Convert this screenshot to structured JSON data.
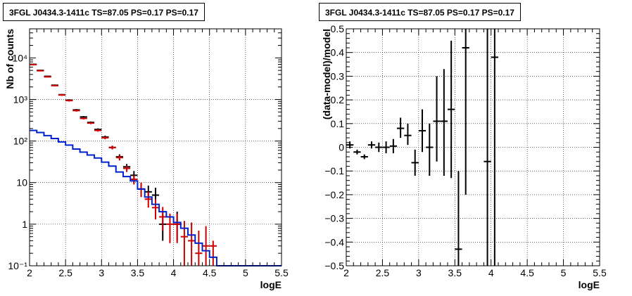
{
  "chart_data": [
    {
      "type": "histogram",
      "title": "3FGL J0434.3-1411c TS=87.05 PS=0.17 PS=0.17",
      "xlabel": "logE",
      "ylabel": "Nb of counts",
      "xlim": [
        2,
        5.5
      ],
      "ylim": [
        0.1,
        50000
      ],
      "yscale": "log",
      "grid": true,
      "xticks": [
        2,
        2.5,
        3,
        3.5,
        4,
        4.5,
        5,
        5.5
      ],
      "xtick_labels": [
        "2",
        "2.5",
        "3",
        "3.5",
        "4",
        "4.5",
        "5",
        "5.5"
      ],
      "yticks": [
        0.1,
        1,
        10,
        100,
        1000,
        10000
      ],
      "ytick_labels": [
        "10⁻¹",
        "1",
        "10",
        "10²",
        "10³",
        "10⁴"
      ],
      "series": [
        {
          "style": "errorbar",
          "color": "#000000",
          "points": [
            {
              "x": 2.05,
              "y": 7000,
              "lo": 6800,
              "hi": 7200
            },
            {
              "x": 2.15,
              "y": 5000,
              "lo": 4850,
              "hi": 5150
            },
            {
              "x": 2.25,
              "y": 3600,
              "lo": 3480,
              "hi": 3720
            },
            {
              "x": 2.35,
              "y": 2200,
              "lo": 2110,
              "hi": 2290
            },
            {
              "x": 2.45,
              "y": 1300,
              "lo": 1240,
              "hi": 1360
            },
            {
              "x": 2.55,
              "y": 960,
              "lo": 910,
              "hi": 1010
            },
            {
              "x": 2.65,
              "y": 560,
              "lo": 530,
              "hi": 590
            },
            {
              "x": 2.75,
              "y": 380,
              "lo": 360,
              "hi": 400
            },
            {
              "x": 2.85,
              "y": 280,
              "lo": 265,
              "hi": 295
            },
            {
              "x": 2.95,
              "y": 190,
              "lo": 178,
              "hi": 202
            },
            {
              "x": 3.05,
              "y": 125,
              "lo": 115,
              "hi": 135
            },
            {
              "x": 3.15,
              "y": 70,
              "lo": 63,
              "hi": 77
            },
            {
              "x": 3.25,
              "y": 42,
              "lo": 36,
              "hi": 48
            },
            {
              "x": 3.35,
              "y": 24,
              "lo": 20,
              "hi": 28
            },
            {
              "x": 3.45,
              "y": 15,
              "lo": 11,
              "hi": 19
            },
            {
              "x": 3.55,
              "y": 7,
              "lo": 4.5,
              "hi": 9.5
            },
            {
              "x": 3.65,
              "y": 6,
              "lo": 3.8,
              "hi": 8.5
            },
            {
              "x": 3.75,
              "y": 5,
              "lo": 3,
              "hi": 7.5
            },
            {
              "x": 3.85,
              "y": 1,
              "lo": 0.4,
              "hi": 2
            },
            {
              "x": 4.05,
              "y": 1,
              "lo": 0.4,
              "hi": 2
            }
          ]
        },
        {
          "style": "errorbar",
          "color": "#cc0000",
          "points": [
            {
              "x": 2.05,
              "y": 6900,
              "lo": 6700,
              "hi": 7100
            },
            {
              "x": 2.15,
              "y": 4900,
              "lo": 4750,
              "hi": 5050
            },
            {
              "x": 2.25,
              "y": 3500,
              "lo": 3380,
              "hi": 3620
            },
            {
              "x": 2.35,
              "y": 2150,
              "lo": 2060,
              "hi": 2240
            },
            {
              "x": 2.45,
              "y": 1280,
              "lo": 1220,
              "hi": 1340
            },
            {
              "x": 2.55,
              "y": 940,
              "lo": 890,
              "hi": 990
            },
            {
              "x": 2.65,
              "y": 540,
              "lo": 510,
              "hi": 570
            },
            {
              "x": 2.75,
              "y": 350,
              "lo": 330,
              "hi": 370
            },
            {
              "x": 2.85,
              "y": 270,
              "lo": 255,
              "hi": 285
            },
            {
              "x": 2.95,
              "y": 180,
              "lo": 168,
              "hi": 192
            },
            {
              "x": 3.05,
              "y": 120,
              "lo": 110,
              "hi": 130
            },
            {
              "x": 3.15,
              "y": 70,
              "lo": 63,
              "hi": 77
            },
            {
              "x": 3.25,
              "y": 40,
              "lo": 34,
              "hi": 46
            },
            {
              "x": 3.35,
              "y": 22,
              "lo": 18,
              "hi": 26
            },
            {
              "x": 3.45,
              "y": 12,
              "lo": 9,
              "hi": 15
            },
            {
              "x": 3.55,
              "y": 7,
              "lo": 4.5,
              "hi": 10
            },
            {
              "x": 3.65,
              "y": 4,
              "lo": 2.5,
              "hi": 6
            },
            {
              "x": 3.75,
              "y": 2.5,
              "lo": 1.3,
              "hi": 4
            },
            {
              "x": 3.85,
              "y": 1.5,
              "lo": 0.7,
              "hi": 2.6
            },
            {
              "x": 3.95,
              "y": 1,
              "lo": 0.35,
              "hi": 1.8
            },
            {
              "x": 4.05,
              "y": 1,
              "lo": 0.35,
              "hi": 1.8
            },
            {
              "x": 4.15,
              "y": 0.5,
              "lo": 0.1,
              "hi": 1.2
            },
            {
              "x": 4.25,
              "y": 0.4,
              "lo": 0.1,
              "hi": 1.1
            },
            {
              "x": 4.35,
              "y": 0.2,
              "lo": 0.1,
              "hi": 0.7
            },
            {
              "x": 4.45,
              "y": 0.3,
              "lo": 0.1,
              "hi": 0.9
            },
            {
              "x": 4.55,
              "y": 0.3,
              "lo": 0.1,
              "hi": 0.4
            }
          ]
        },
        {
          "style": "step",
          "color": "#0022cc",
          "bins": [
            2.0,
            2.1,
            2.2,
            2.3,
            2.4,
            2.5,
            2.6,
            2.7,
            2.8,
            2.9,
            3.0,
            3.1,
            3.2,
            3.3,
            3.4,
            3.5,
            3.6,
            3.7,
            3.8,
            3.9,
            4.0,
            4.1,
            4.2,
            4.3,
            4.4,
            4.5,
            4.6,
            5.5
          ],
          "values": [
            180,
            160,
            135,
            115,
            95,
            80,
            64,
            54,
            46,
            39,
            31,
            25,
            18,
            14,
            11,
            7,
            4.5,
            3,
            2,
            1.5,
            1.1,
            0.8,
            0.55,
            0.35,
            0.23,
            0.16,
            0.1
          ]
        }
      ]
    },
    {
      "type": "scatter",
      "title": "3FGL J0434.3-1411c TS=87.05 PS=0.17 PS=0.17",
      "xlabel": "logE",
      "ylabel": "(data-model)/model",
      "xlim": [
        2,
        5.5
      ],
      "ylim": [
        -0.5,
        0.5
      ],
      "grid": true,
      "xticks": [
        2,
        2.5,
        3,
        3.5,
        4,
        4.5,
        5,
        5.5
      ],
      "xtick_labels": [
        "2",
        "2.5",
        "3",
        "3.5",
        "4",
        "4.5",
        "5",
        "5.5"
      ],
      "yticks": [
        -0.5,
        -0.4,
        -0.3,
        -0.2,
        -0.1,
        0,
        0.1,
        0.2,
        0.3,
        0.4,
        0.5
      ],
      "ytick_labels": [
        "−0.5",
        "−0.4",
        "−0.3",
        "−0.2",
        "−0.1",
        "0",
        "0.1",
        "0.2",
        "0.3",
        "0.4",
        "0.5"
      ],
      "series": [
        {
          "style": "errorbar",
          "color": "#000000",
          "points": [
            {
              "x": 2.05,
              "y": 0.01,
              "lo": -0.005,
              "hi": 0.025
            },
            {
              "x": 2.15,
              "y": -0.02,
              "lo": -0.03,
              "hi": -0.01
            },
            {
              "x": 2.25,
              "y": -0.04,
              "lo": -0.05,
              "hi": -0.03
            },
            {
              "x": 2.35,
              "y": 0.01,
              "lo": -0.005,
              "hi": 0.025
            },
            {
              "x": 2.45,
              "y": 0.0,
              "lo": -0.02,
              "hi": 0.02
            },
            {
              "x": 2.55,
              "y": 0.0,
              "lo": -0.025,
              "hi": 0.025
            },
            {
              "x": 2.65,
              "y": 0.005,
              "lo": -0.025,
              "hi": 0.035
            },
            {
              "x": 2.75,
              "y": 0.08,
              "lo": 0.04,
              "hi": 0.125
            },
            {
              "x": 2.85,
              "y": 0.05,
              "lo": 0.01,
              "hi": 0.1
            },
            {
              "x": 2.95,
              "y": -0.065,
              "lo": -0.12,
              "hi": -0.01
            },
            {
              "x": 3.05,
              "y": 0.07,
              "lo": -0.02,
              "hi": 0.16
            },
            {
              "x": 3.15,
              "y": 0.0,
              "lo": -0.12,
              "hi": 0.1
            },
            {
              "x": 3.25,
              "y": 0.11,
              "lo": -0.06,
              "hi": 0.3
            },
            {
              "x": 3.35,
              "y": 0.11,
              "lo": -0.12,
              "hi": 0.33
            },
            {
              "x": 3.45,
              "y": 0.16,
              "lo": -0.13,
              "hi": 0.45
            },
            {
              "x": 3.55,
              "y": -0.43,
              "lo": -0.5,
              "hi": -0.1
            },
            {
              "x": 3.65,
              "y": 0.42,
              "lo": -0.2,
              "hi": 0.5
            },
            {
              "x": 3.95,
              "y": -0.06,
              "lo": -0.5,
              "hi": 0.5
            },
            {
              "x": 4.05,
              "y": 0.38,
              "lo": -0.5,
              "hi": 0.5
            }
          ]
        }
      ]
    }
  ]
}
